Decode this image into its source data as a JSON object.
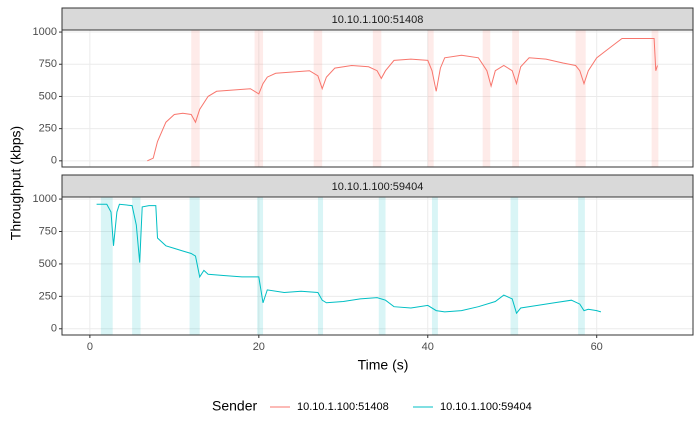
{
  "chart_data": {
    "type": "line",
    "xlabel": "Time (s)",
    "ylabel": "Throughput (kbps)",
    "legend_title": "Sender",
    "legend": "bottom",
    "grid": true,
    "xlim": [
      -3.3,
      71.4
    ],
    "xticks": [
      0,
      20,
      40,
      60
    ],
    "ylim": [
      -48,
      1016
    ],
    "yticks": [
      0,
      250,
      500,
      750,
      1000
    ],
    "series": [
      {
        "name": "10.10.1.100:51408",
        "color": "#F8766D",
        "x": [
          6.8,
          7.5,
          8,
          9,
          10,
          11,
          12,
          12.5,
          13,
          14,
          15,
          17,
          19,
          20,
          20.5,
          21,
          22,
          24,
          26,
          27,
          27.5,
          28,
          29,
          31,
          33,
          34,
          34.5,
          35,
          36,
          38,
          40,
          40.5,
          41,
          41.5,
          42,
          44,
          46,
          47,
          47.5,
          48,
          49,
          50,
          50.5,
          51,
          52,
          54,
          56,
          57.5,
          58,
          58.5,
          59,
          60,
          61,
          62,
          63,
          65,
          66.8,
          67,
          67.2
        ],
        "values": [
          0,
          20,
          150,
          300,
          360,
          370,
          360,
          300,
          400,
          500,
          540,
          550,
          560,
          520,
          600,
          650,
          680,
          690,
          700,
          660,
          560,
          650,
          720,
          740,
          730,
          700,
          640,
          700,
          780,
          790,
          780,
          700,
          540,
          720,
          800,
          820,
          800,
          700,
          580,
          700,
          740,
          700,
          600,
          730,
          800,
          790,
          760,
          740,
          700,
          600,
          700,
          800,
          850,
          900,
          950,
          950,
          950,
          700,
          740
        ],
        "bands": [
          [
            12,
            13
          ],
          [
            19.5,
            20.5
          ],
          [
            26.5,
            27.5
          ],
          [
            33.5,
            34.5
          ],
          [
            40,
            40.7
          ],
          [
            46.5,
            47.4
          ],
          [
            50,
            50.8
          ],
          [
            57.5,
            58.7
          ],
          [
            66.5,
            67.3
          ]
        ]
      },
      {
        "name": "10.10.1.100:59404",
        "color": "#00BFC4",
        "x": [
          0.8,
          2,
          2.5,
          2.8,
          3.2,
          3.5,
          5,
          5.5,
          5.9,
          6.2,
          7,
          7.8,
          8,
          9,
          10,
          11,
          12,
          12.5,
          13,
          13.5,
          14,
          16,
          18,
          20,
          20.5,
          21,
          23,
          25,
          27,
          27.5,
          28,
          30,
          32,
          34,
          35,
          36,
          38,
          40,
          41,
          42,
          44,
          46,
          48,
          49,
          50,
          50.5,
          51,
          53,
          55,
          57,
          58,
          58.5,
          59,
          60,
          60.5
        ],
        "values": [
          960,
          960,
          900,
          640,
          900,
          960,
          950,
          800,
          510,
          940,
          950,
          950,
          700,
          640,
          620,
          600,
          580,
          560,
          400,
          450,
          420,
          410,
          400,
          400,
          200,
          300,
          280,
          290,
          280,
          220,
          200,
          210,
          230,
          240,
          220,
          170,
          160,
          180,
          140,
          130,
          140,
          170,
          210,
          260,
          230,
          120,
          160,
          180,
          200,
          220,
          190,
          140,
          150,
          140,
          130
        ],
        "bands": [
          [
            1.3,
            2.7
          ],
          [
            5,
            6
          ],
          [
            11.8,
            13
          ],
          [
            19.8,
            20.5
          ],
          [
            27,
            27.6
          ],
          [
            34.2,
            35
          ],
          [
            40.5,
            41.2
          ],
          [
            49.8,
            50.7
          ],
          [
            57.8,
            58.6
          ]
        ]
      }
    ]
  }
}
